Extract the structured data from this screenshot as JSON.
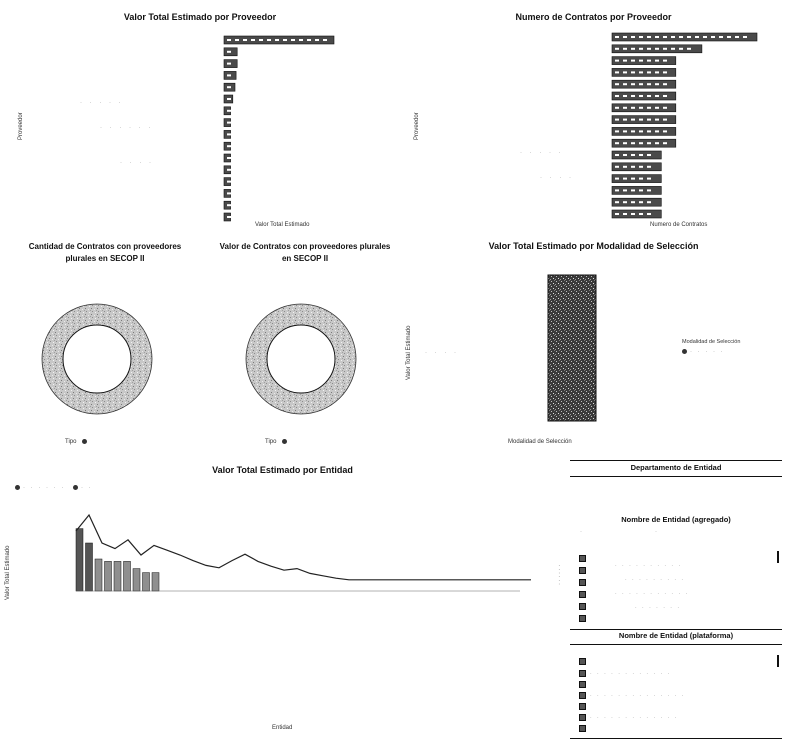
{
  "chart_data": [
    {
      "id": "valor-proveedor",
      "type": "bar",
      "orientation": "horizontal",
      "title": "Valor Total Estimado por Proveedor",
      "xlabel": "Valor Total Estimado",
      "ylabel": "Proveedor",
      "values": [
        100,
        12,
        12,
        11,
        10,
        8,
        6,
        6,
        6,
        6,
        6,
        6,
        6,
        6,
        6,
        6
      ],
      "xlim": [
        0,
        100
      ]
    },
    {
      "id": "numero-proveedor",
      "type": "bar",
      "orientation": "horizontal",
      "title": "Numero de Contratos por Proveedor",
      "xlabel": "Numero de Contratos",
      "ylabel": "Proveedor",
      "values": [
        100,
        62,
        44,
        44,
        44,
        44,
        44,
        44,
        44,
        44,
        34,
        34,
        34,
        34,
        34,
        34
      ],
      "xlim": [
        0,
        100
      ]
    },
    {
      "id": "cantidad-plurales",
      "type": "pie",
      "donut": true,
      "title": "Cantidad de Contratos con proveedores plurales en SECOP II",
      "legend_label": "Tipo",
      "values": [
        100
      ]
    },
    {
      "id": "valor-plurales",
      "type": "pie",
      "donut": true,
      "title": "Valor de Contratos con proveedores plurales en SECOP II",
      "legend_label": "Tipo",
      "values": [
        100
      ]
    },
    {
      "id": "valor-modalidad",
      "type": "bar",
      "title": "Valor Total Estimado por Modalidad de Selección",
      "xlabel": "Modalidad de Selección",
      "ylabel": "Valor Total Estimado",
      "legend_title": "Modalidad de Selección",
      "values": [
        100
      ],
      "ylim": [
        0,
        100
      ]
    },
    {
      "id": "valor-entidad",
      "type": "bar",
      "title": "Valor Total Estimado por Entidad",
      "xlabel": "Entidad",
      "ylabel": "Valor Total Estimado",
      "bar_values": [
        78,
        60,
        40,
        37,
        37,
        37,
        28,
        23,
        23
      ],
      "line_values": [
        75,
        95,
        60,
        53,
        64,
        45,
        57,
        51,
        45,
        38,
        32,
        29,
        38,
        46,
        37,
        31,
        26,
        28,
        22,
        19,
        16,
        14,
        14,
        14,
        14,
        14,
        14,
        14,
        14,
        14,
        14,
        14,
        14,
        14,
        14,
        14
      ],
      "ylim": [
        0,
        100
      ]
    }
  ],
  "filters": {
    "departamento_title": "Departamento de Entidad",
    "agregado_title": "Nombre de Entidad (agregado)",
    "plataforma_title": "Nombre de Entidad (plataforma)"
  }
}
